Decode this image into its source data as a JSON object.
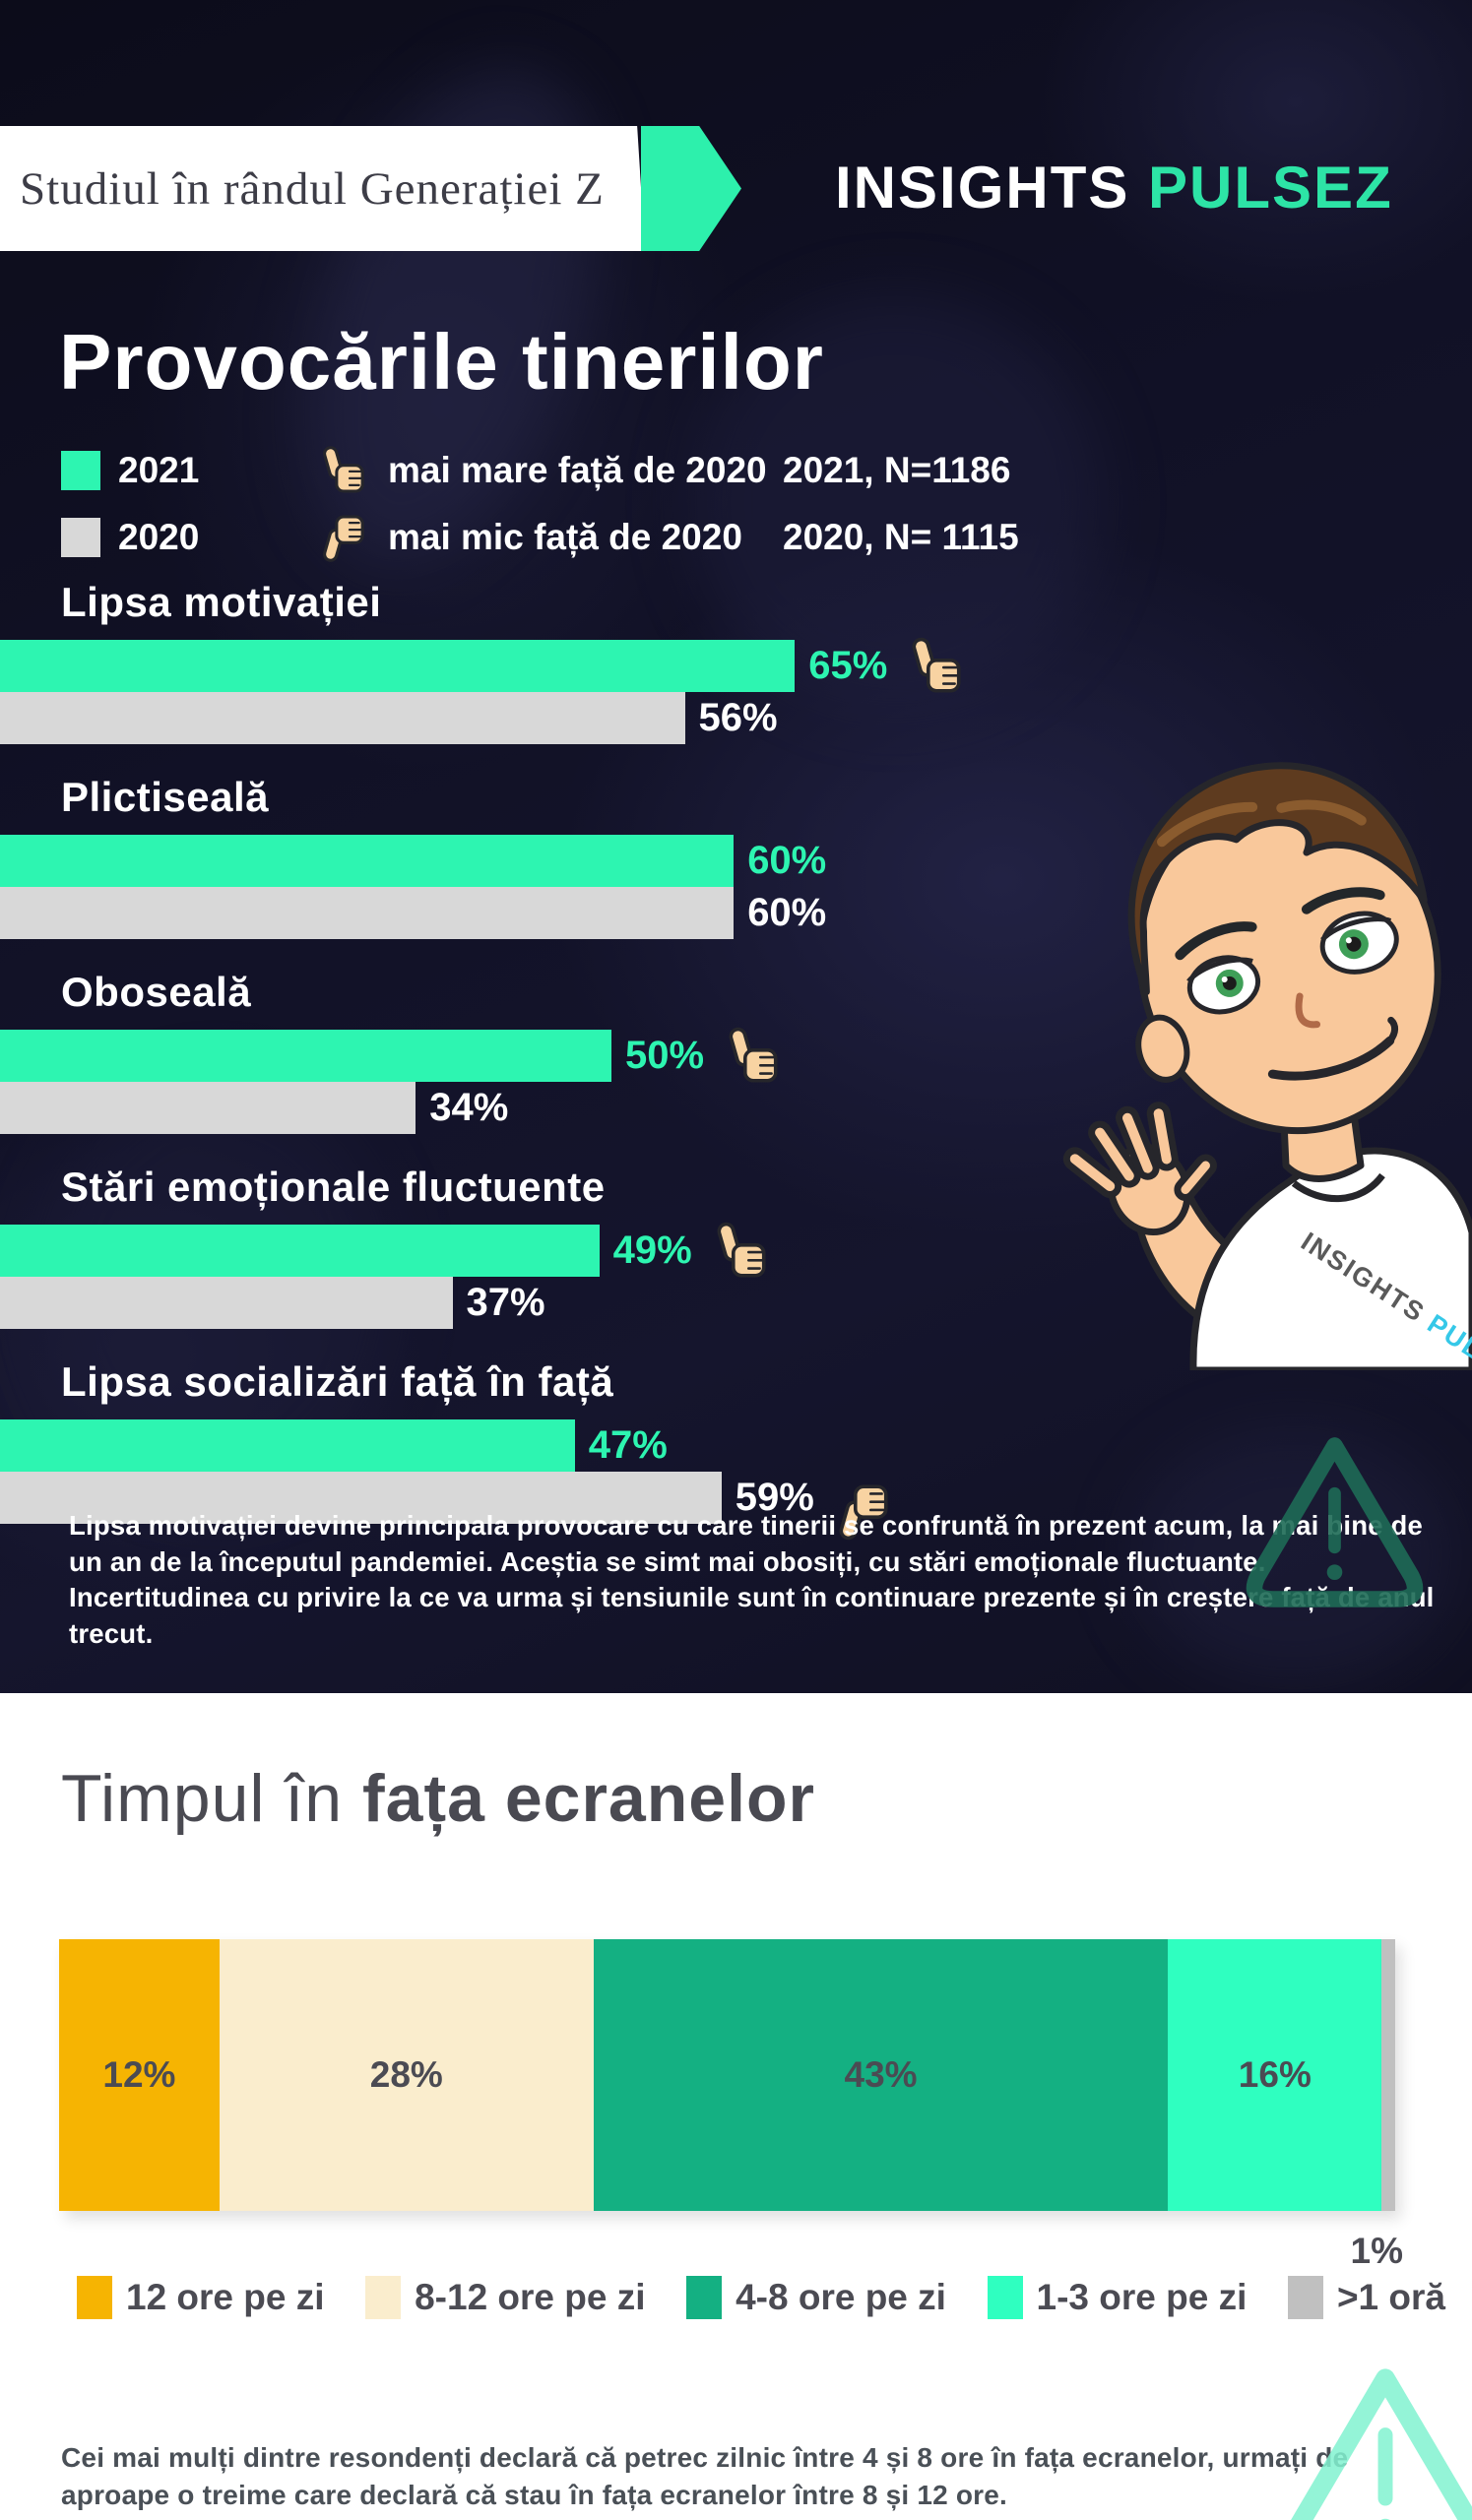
{
  "header": {
    "banner_text": "Studiul în rândul Generației Z",
    "brand_white": "INSIGHTS",
    "brand_teal": "PULSEZ"
  },
  "section1": {
    "title": "Provocările tinerilor",
    "legend": {
      "year_2021": "2021",
      "year_2020": "2020",
      "thumb_up_label": "mai mare față de 2020",
      "thumb_down_label": "mai mic față de 2020",
      "sample_2021": "2021, N=1186",
      "sample_2020": "2020, N= 1115"
    },
    "note": "Lipsa motivației devine principala provocare cu care tinerii se confruntă în prezent acum, la mai bine de un an de la începutul pandemiei. Aceștia se simt mai obosiți, cu stări emoționale fluctuante. Incertitudinea cu privire la ce va urma și tensiunile sunt în continuare prezente și în creștere față de anul trecut."
  },
  "section2": {
    "title_regular": "Timpul în ",
    "title_bold": "fața ecranelor",
    "outside_label": "1%",
    "note": "Cei mai mulți dintre resondenți declară că petrec zilnic între 4 și 8 ore în fața ecranelor, urmați de aproape o treime care declară că stau în fața ecranelor între 8 și 12 ore."
  },
  "colors": {
    "accent_teal": "#2df0ac",
    "bar_2021": "#2df5b1",
    "bar_2020": "#d8d8d8",
    "dark_bg": "#12122a",
    "text_gray": "#4b4b53",
    "warn_dark": "#1e6b56",
    "warn_mint": "#82f3d1"
  },
  "chart_data": [
    {
      "type": "bar",
      "orientation": "horizontal",
      "title": "Provocările tinerilor",
      "unit": "%",
      "xlim": [
        0,
        100
      ],
      "categories": [
        "Lipsa motivației",
        "Plictiseală",
        "Oboseală",
        "Stări emoționale fluctuente",
        "Lipsa socializări față în față"
      ],
      "series": [
        {
          "name": "2021",
          "color": "#2df5b1",
          "label_color": "#2df5b1",
          "values": [
            65,
            60,
            50,
            49,
            47
          ]
        },
        {
          "name": "2020",
          "color": "#d8d8d8",
          "label_color": "#ffffff",
          "values": [
            56,
            60,
            34,
            37,
            59
          ]
        }
      ],
      "icons": {
        "2021": [
          "thumb-up",
          null,
          "thumb-up",
          "thumb-up",
          null
        ],
        "2020": [
          null,
          null,
          null,
          null,
          "thumb-down"
        ]
      },
      "legend": [
        "2021",
        "2020"
      ],
      "grid": false
    },
    {
      "type": "bar",
      "subtype": "stacked-horizontal",
      "title": "Timpul în fața ecranelor",
      "unit": "%",
      "categories": [
        "12 ore pe zi",
        "8-12 ore pe zi",
        "4-8 ore pe zi",
        "1-3 ore pe zi",
        ">1 oră"
      ],
      "values": [
        12,
        28,
        43,
        16,
        1
      ],
      "colors": [
        "#f6b402",
        "#faedcd",
        "#14b082",
        "#2fffc0",
        "#c0c0c0"
      ],
      "legend_position": "bottom",
      "outside_label_for_last": "1%"
    }
  ]
}
